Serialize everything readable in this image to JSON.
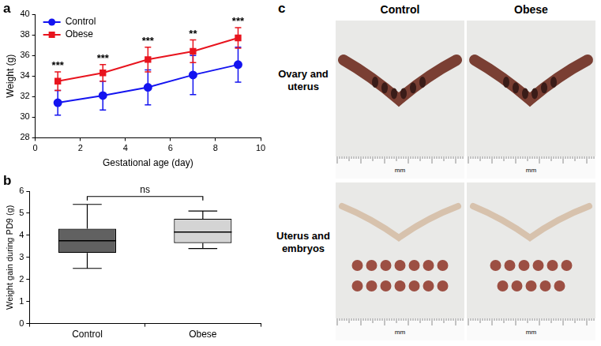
{
  "chart_data": [
    {
      "panel_label": "a",
      "type": "line",
      "x": [
        1,
        3,
        5,
        7,
        9
      ],
      "x_label": "Gestational age (day)",
      "y_label": "Weight (g)",
      "series": [
        {
          "name": "Control",
          "color": "#1414f0",
          "marker": "circle",
          "values": [
            31.4,
            32.1,
            32.9,
            34.1,
            35.1
          ],
          "errors": [
            1.2,
            1.4,
            1.7,
            1.9,
            1.7
          ]
        },
        {
          "name": "Obese",
          "color": "#e8141e",
          "marker": "square",
          "values": [
            33.5,
            34.3,
            35.6,
            36.4,
            37.7
          ],
          "errors": [
            0.9,
            0.8,
            1.2,
            1.1,
            1.0
          ]
        }
      ],
      "annotations": [
        {
          "x": 1,
          "text": "***"
        },
        {
          "x": 3,
          "text": "***"
        },
        {
          "x": 5,
          "text": "***"
        },
        {
          "x": 7,
          "text": "**"
        },
        {
          "x": 9,
          "text": "***"
        }
      ],
      "xlim": [
        0,
        10
      ],
      "xticks": [
        0,
        2,
        4,
        6,
        8,
        10
      ],
      "ylim": [
        28,
        40
      ],
      "yticks": [
        28,
        30,
        32,
        34,
        36,
        38,
        40
      ],
      "grid": false,
      "legend": "upper left"
    },
    {
      "panel_label": "b",
      "type": "box",
      "categories": [
        "Control",
        "Obese"
      ],
      "y_label": "Weight gain during PD9 (g)",
      "boxes": [
        {
          "min": 2.5,
          "q1": 3.2,
          "median": 3.75,
          "q3": 4.3,
          "max": 5.4
        },
        {
          "min": 3.4,
          "q1": 3.65,
          "median": 4.15,
          "q3": 4.75,
          "max": 5.1
        }
      ],
      "colors": [
        "#616161",
        "#d4d4d4"
      ],
      "annotations": [
        {
          "between": [
            "Control",
            "Obese"
          ],
          "text": "ns"
        }
      ],
      "ylim": [
        0,
        6
      ],
      "yticks": [
        0,
        1,
        2,
        3,
        4,
        5,
        6
      ],
      "grid": false
    }
  ],
  "photo_panel": {
    "panel_label": "c",
    "columns": [
      "Control",
      "Obese"
    ],
    "rows": [
      "Ovary and uterus",
      "Uterus and embryos"
    ],
    "scale_unit": "mm",
    "embryo_count": [
      14,
      11
    ]
  }
}
